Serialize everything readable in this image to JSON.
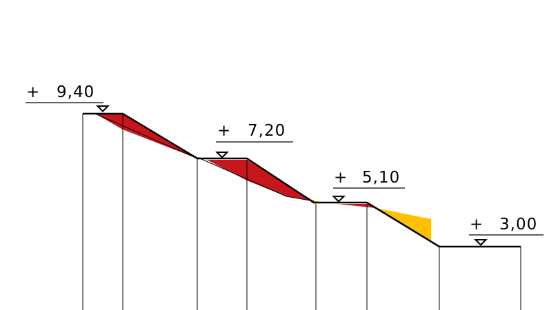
{
  "levels": [
    {
      "plus": "+",
      "value": "9,40"
    },
    {
      "plus": "+",
      "value": "7,20"
    },
    {
      "plus": "+",
      "value": "5,10"
    },
    {
      "plus": "+",
      "value": "3,00"
    }
  ],
  "colors": {
    "cut": "#c8161d",
    "fill": "#ffc000",
    "line": "#000000",
    "background": "#ffffff"
  }
}
